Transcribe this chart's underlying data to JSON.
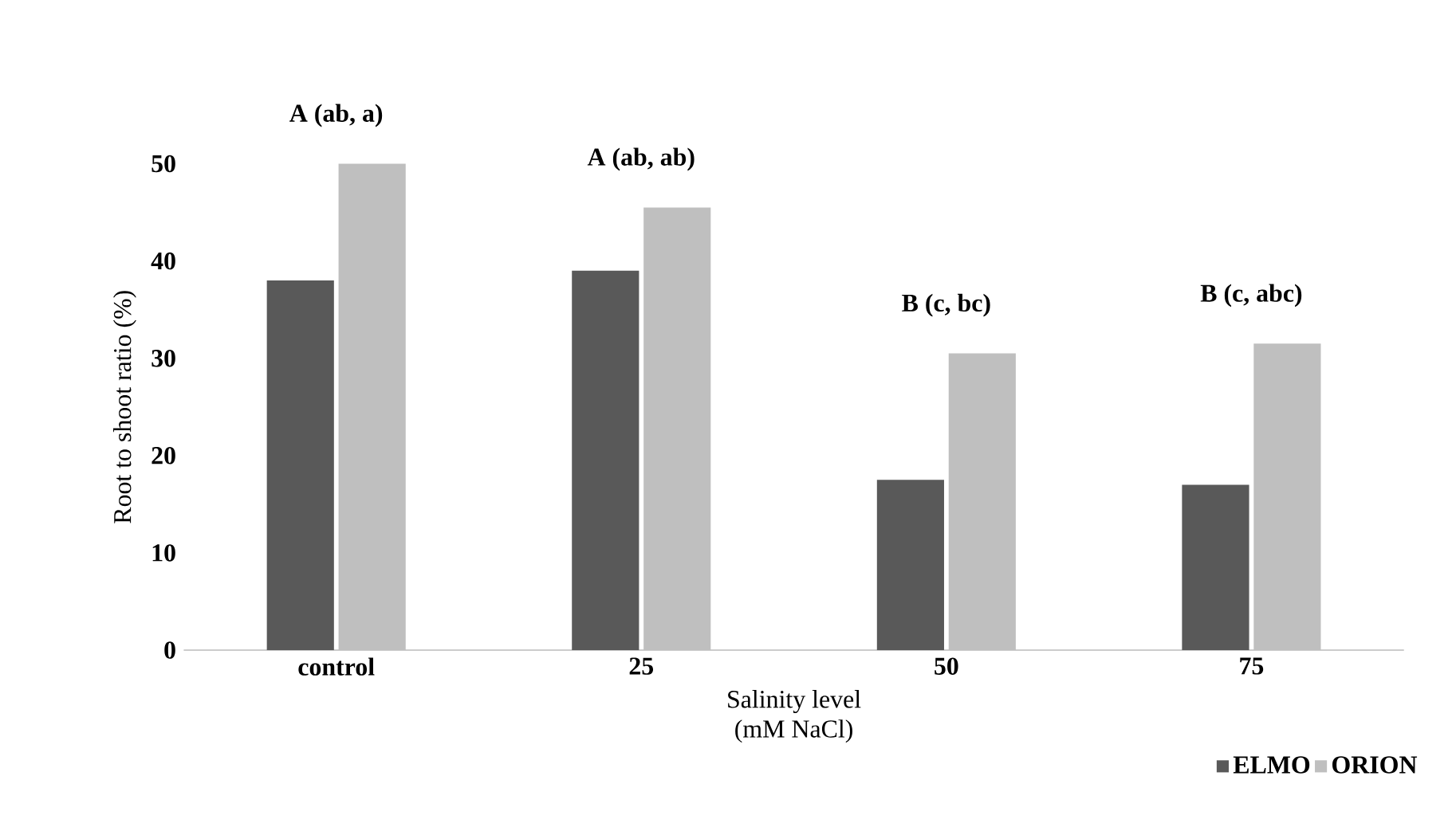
{
  "chart_data": {
    "type": "bar",
    "xlabel": "Salinity level\n(mM NaCl)",
    "ylabel": "Root to shoot ratio (%)",
    "categories": [
      "control",
      "25",
      "50",
      "75"
    ],
    "series": [
      {
        "name": "ELMO",
        "color": "#595959",
        "values": [
          38,
          39,
          17.5,
          17
        ]
      },
      {
        "name": "ORION",
        "color": "#bfbfbf",
        "values": [
          50,
          45.5,
          30.5,
          31.5
        ]
      }
    ],
    "ylim": [
      0,
      50
    ],
    "yticks": [
      0,
      10,
      20,
      30,
      40,
      50
    ],
    "legend": "bottom right",
    "annotations": [
      "A (ab, a)",
      "A (ab, ab)",
      "B (c, bc)",
      "B (c, abc)"
    ]
  }
}
